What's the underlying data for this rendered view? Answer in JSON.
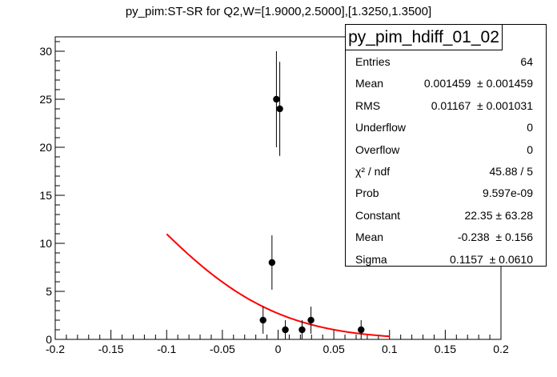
{
  "chart_data": {
    "type": "scatter",
    "title": "py_pim:ST-SR for Q2,W=[1.9000,2.5000],[1.3250,1.3500]",
    "xlim": [
      -0.2,
      0.2
    ],
    "ylim": [
      0,
      31.5
    ],
    "x_ticks": [
      "-0.2",
      "-0.15",
      "-0.1",
      "-0.05",
      "0",
      "0.05",
      "0.1",
      "0.15",
      "0.2"
    ],
    "y_ticks": [
      "0",
      "5",
      "10",
      "15",
      "20",
      "25",
      "30"
    ],
    "points": [
      {
        "x": -0.0135,
        "y": 2,
        "err": 1.41
      },
      {
        "x": -0.0055,
        "y": 8,
        "err": 2.83
      },
      {
        "x": -0.0015,
        "y": 25,
        "err": 5.0
      },
      {
        "x": 0.0015,
        "y": 24,
        "err": 4.9
      },
      {
        "x": 0.0065,
        "y": 1,
        "err": 1.0
      },
      {
        "x": 0.0215,
        "y": 1,
        "err": 1.0
      },
      {
        "x": 0.0295,
        "y": 2,
        "err": 1.41
      },
      {
        "x": 0.0745,
        "y": 1,
        "err": 1.0
      }
    ],
    "fit": {
      "type": "gaus",
      "constant": 22.35,
      "mean": -0.238,
      "sigma": 0.1157,
      "x_range": [
        -0.1,
        0.1
      ],
      "color": "#ff0000"
    }
  },
  "stats": {
    "name": "py_pim_hdiff_01_02",
    "rows": [
      {
        "label": "Entries",
        "value": "64"
      },
      {
        "label": "Mean",
        "value": "0.001459  ± 0.001459"
      },
      {
        "label": "RMS",
        "value": "0.01167  ± 0.001031"
      },
      {
        "label": "Underflow",
        "value": "0"
      },
      {
        "label": "Overflow",
        "value": "0"
      },
      {
        "label": "χ² / ndf",
        "value": "45.88 / 5"
      },
      {
        "label": "Prob",
        "value": "9.597e-09"
      },
      {
        "label": "Constant",
        "value": "22.35 ± 63.28"
      },
      {
        "label": "Mean",
        "value": "-0.238  ± 0.156"
      },
      {
        "label": "Sigma",
        "value": "0.1157  ± 0.0610"
      }
    ]
  }
}
